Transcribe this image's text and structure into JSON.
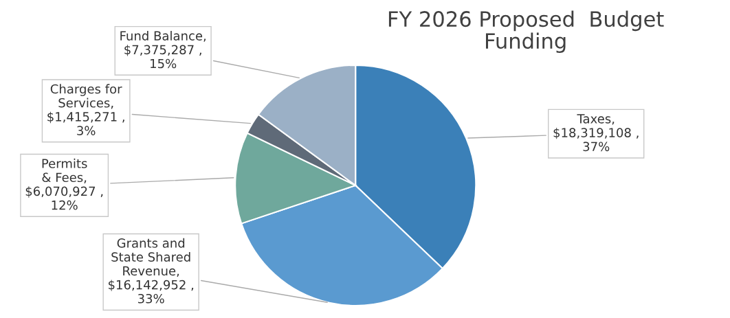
{
  "chart_data": {
    "type": "pie",
    "title": "FY 2026 Proposed  Budget\nFunding",
    "categories": [
      "Taxes",
      "Grants and State Shared Revenue",
      "Permits & Fees",
      "Charges for Services",
      "Fund Balance"
    ],
    "values": [
      18319108,
      16142952,
      6070927,
      1415271,
      7375287
    ],
    "value_labels": [
      ",\n$18,319,108 ,\n37%",
      ",\n$16,142,952 ,\n33%",
      ",\n$6,070,927 ,\n12%",
      ",\n$1,415,271 ,\n3%",
      ",\n$7,375,287 ,\n15%"
    ],
    "colors": [
      "#3b80b8",
      "#5a9ad0",
      "#6fa89c",
      "#5f6a78",
      "#9bb0c6"
    ],
    "legend": false
  }
}
